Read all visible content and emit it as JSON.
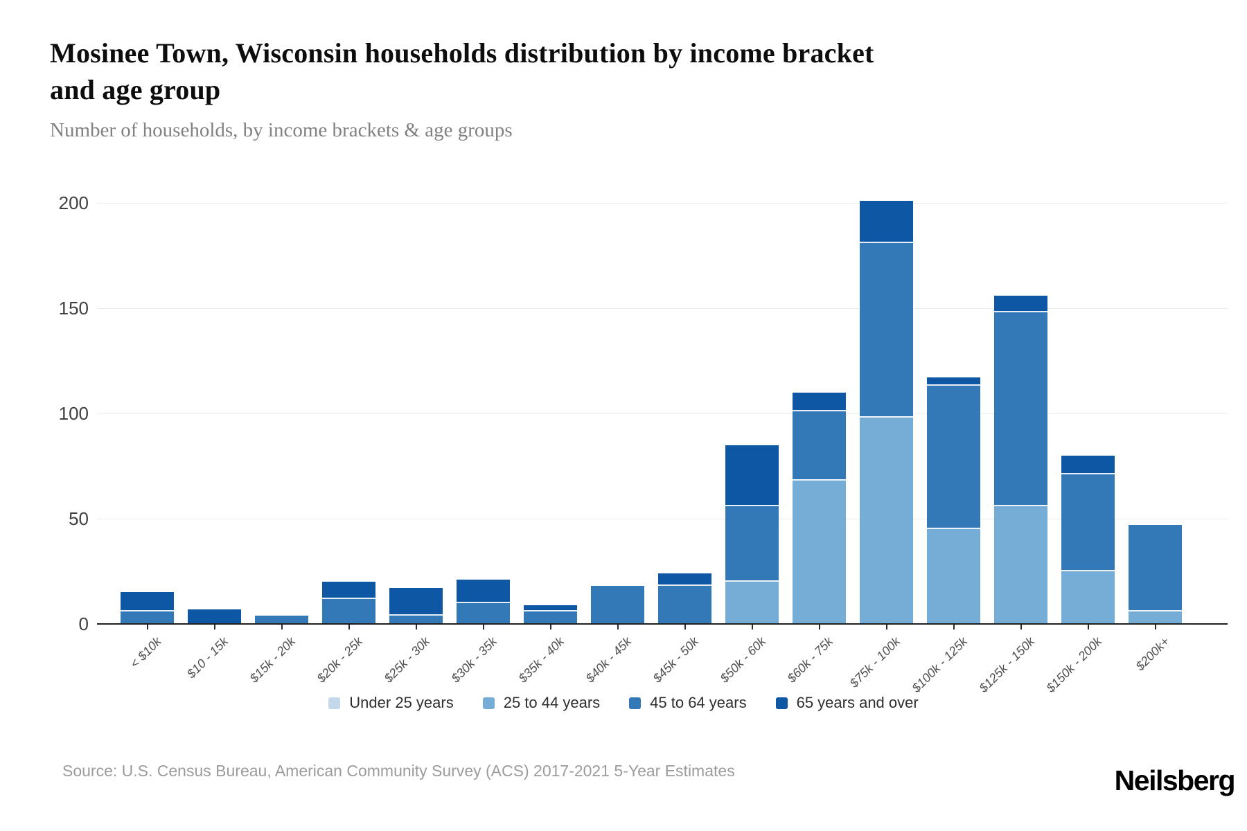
{
  "page": {
    "title_line1": "Mosinee Town, Wisconsin households distribution by income bracket",
    "title_line2": "and age group",
    "subtitle": "Number of households, by income brackets & age groups",
    "source": "Source: U.S. Census Bureau, American Community Survey (ACS) 2017-2021 5-Year Estimates",
    "brand": "Neilsberg"
  },
  "colors": {
    "under_25": "#c3d8ea",
    "age_25_44": "#75add7",
    "age_45_64": "#3379b8",
    "age_65_over": "#0d57a4",
    "gridline": "#ededed",
    "axis": "#1f1f1f"
  },
  "chart_data": {
    "type": "bar",
    "stacked": true,
    "title": "Mosinee Town, Wisconsin households distribution by income bracket and age group",
    "subtitle": "Number of households, by income brackets & age groups",
    "xlabel": "",
    "ylabel": "Number of households",
    "ylim": [
      0,
      205
    ],
    "yticks": [
      0,
      50,
      100,
      150,
      200
    ],
    "grid": true,
    "legend_position": "bottom",
    "categories": [
      "< $10k",
      "$10 - 15k",
      "$15k - 20k",
      "$20k - 25k",
      "$25k - 30k",
      "$30k - 35k",
      "$35k - 40k",
      "$40k - 45k",
      "$45k - 50k",
      "$50k - 60k",
      "$60k - 75k",
      "$75k - 100k",
      "$100k - 125k",
      "$125k - 150k",
      "$150k - 200k",
      "$200k+"
    ],
    "series": [
      {
        "name": "Under 25 years",
        "color": "#c3d8ea",
        "values": [
          0,
          0,
          0,
          0,
          0,
          0,
          0,
          0,
          0,
          0,
          0,
          0,
          0,
          0,
          0,
          0
        ]
      },
      {
        "name": "25 to 44 years",
        "color": "#75add7",
        "values": [
          0,
          0,
          0,
          0,
          0,
          0,
          0,
          0,
          0,
          20,
          68,
          98,
          45,
          56,
          25,
          6
        ]
      },
      {
        "name": "45 to 64 years",
        "color": "#3379b8",
        "values": [
          6,
          0,
          4,
          12,
          4,
          10,
          6,
          18,
          18,
          36,
          33,
          83,
          68,
          92,
          46,
          41
        ]
      },
      {
        "name": "65 years and over",
        "color": "#0d57a4",
        "values": [
          9,
          7,
          0,
          8,
          13,
          11,
          3,
          0,
          6,
          29,
          9,
          20,
          4,
          8,
          9,
          0
        ]
      }
    ]
  }
}
